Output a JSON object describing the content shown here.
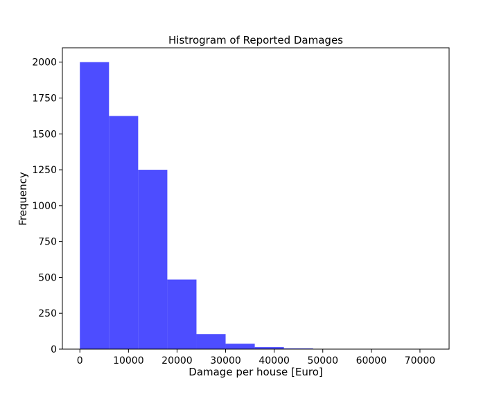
{
  "chart_data": {
    "type": "bar",
    "title": "Histrogram of Reported Damages",
    "xlabel": "Damage per house [Euro]",
    "ylabel": "Frequency",
    "bin_edges": [
      0,
      6000,
      12000,
      18000,
      24000,
      30000,
      36000,
      42000,
      48000,
      54000,
      60000,
      66000,
      72000
    ],
    "values": [
      2000,
      1625,
      1250,
      485,
      105,
      38,
      14,
      5,
      2,
      1,
      1,
      1
    ],
    "xlim": [
      -3600,
      76000
    ],
    "ylim": [
      0,
      2100
    ],
    "x_ticks": [
      0,
      10000,
      20000,
      30000,
      40000,
      50000,
      60000,
      70000
    ],
    "x_tick_labels": [
      "0",
      "10000",
      "20000",
      "30000",
      "40000",
      "50000",
      "60000",
      "70000"
    ],
    "y_ticks": [
      0,
      250,
      500,
      750,
      1000,
      1250,
      1500,
      1750,
      2000
    ],
    "y_tick_labels": [
      "0",
      "250",
      "500",
      "750",
      "1000",
      "1250",
      "1500",
      "1750",
      "2000"
    ],
    "bar_color": "#4d4dff",
    "grid": false,
    "legend": "none"
  }
}
